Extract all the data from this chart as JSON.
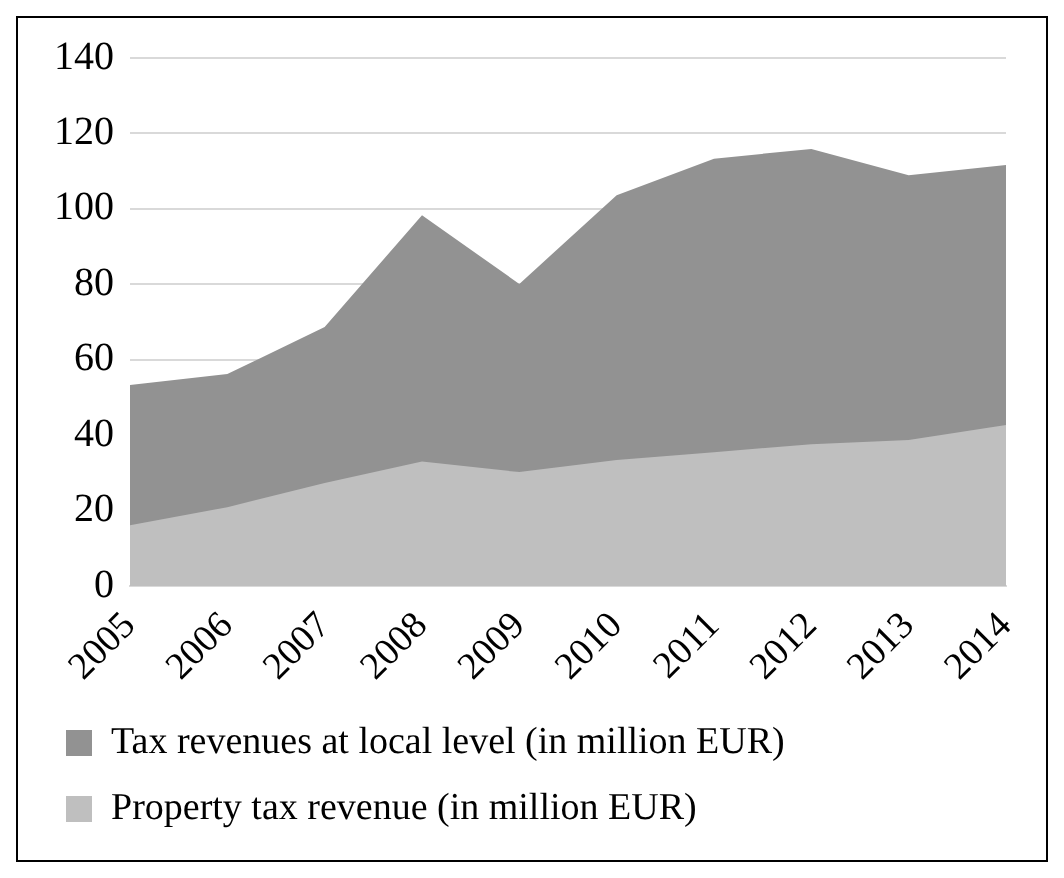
{
  "chart_data": {
    "type": "area",
    "categories": [
      "2005",
      "2006",
      "2007",
      "2008",
      "2009",
      "2010",
      "2011",
      "2012",
      "2013",
      "2014"
    ],
    "series": [
      {
        "name": "Tax revenues at local level (in million EUR)",
        "color": "#929292",
        "values": [
          53.3,
          56.2,
          68.7,
          98.3,
          80.1,
          103.6,
          113.3,
          115.9,
          108.9,
          111.6
        ]
      },
      {
        "name": "Property tax revenue (in million EUR)",
        "color": "#bfbfbf",
        "values": [
          16.1,
          20.9,
          27.3,
          33,
          30.2,
          33.4,
          35.5,
          37.6,
          38.7,
          42.7
        ]
      }
    ],
    "ylim": [
      0,
      140
    ],
    "yticks": [
      0,
      20,
      40,
      60,
      80,
      100,
      120,
      140
    ],
    "grid": "y",
    "legend": "bottom"
  }
}
